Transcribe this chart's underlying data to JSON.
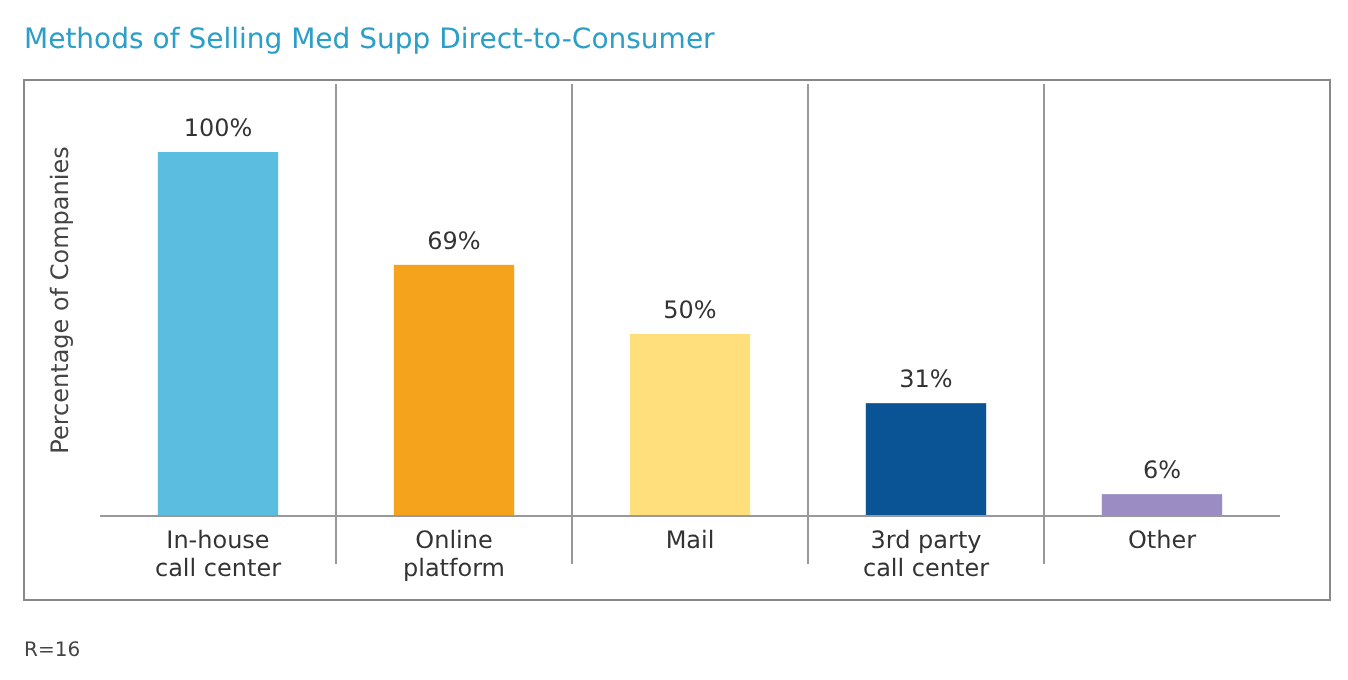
{
  "chart_data": {
    "type": "bar",
    "title": "Methods of Selling Med Supp Direct-to-Consumer",
    "ylabel": "Percentage of Companies",
    "categories": [
      "In-house\ncall center",
      "Online\nplatform",
      "Mail",
      "3rd party\ncall center",
      "Other"
    ],
    "values": [
      100,
      69,
      50,
      31,
      6
    ],
    "colors": [
      "#5bbde0",
      "#f5a31c",
      "#fedf7c",
      "#0a5394",
      "#9b8dc3"
    ],
    "value_labels": [
      "100%",
      "69%",
      "50%",
      "31%",
      "6%"
    ],
    "annotations": [
      "R=16"
    ]
  }
}
